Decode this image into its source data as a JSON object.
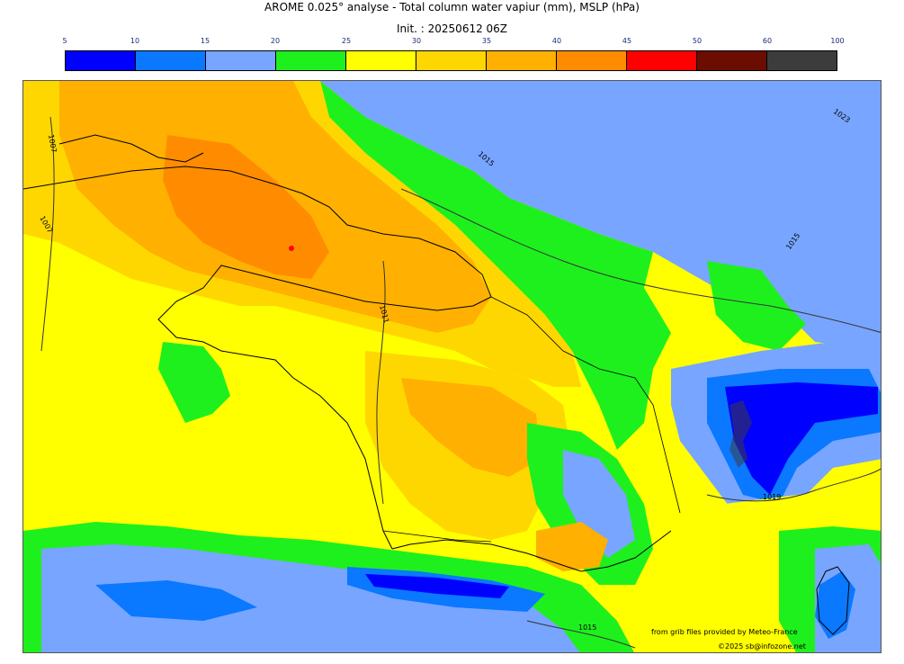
{
  "header": {
    "title": "AROME 0.025° analyse - Total column water vapiur (mm), MSLP (hPa)",
    "init": "Init. : 20250612 06Z"
  },
  "colorbar": {
    "ticks": [
      "5",
      "10",
      "15",
      "20",
      "25",
      "30",
      "35",
      "40",
      "45",
      "50",
      "60",
      "100"
    ],
    "colors": [
      "#0000ff",
      "#0a78ff",
      "#78a5ff",
      "#1ef01e",
      "#ffff00",
      "#ffd700",
      "#ffb000",
      "#ff8c00",
      "#ff0000",
      "#6b0d00",
      "#3c3c3c"
    ]
  },
  "map": {
    "isobar_labels": [
      "1007",
      "1007",
      "1015",
      "1011",
      "1015",
      "1015",
      "1019",
      "1015",
      "1023"
    ]
  },
  "footer": {
    "source": "from grib files provided by Meteo-France",
    "copyright": "©2025 sb@infozone.net"
  }
}
